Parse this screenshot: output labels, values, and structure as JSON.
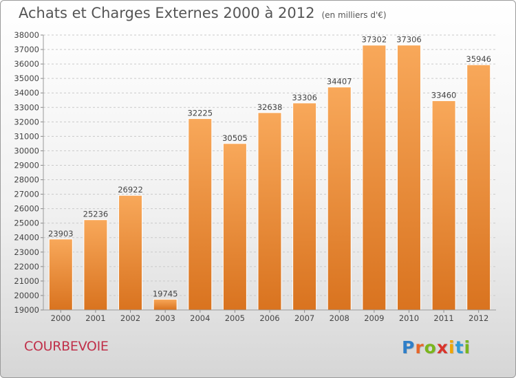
{
  "header": {
    "title": "Achats et Charges Externes 2000 à 2012",
    "unit": "(en milliers d'€)"
  },
  "footer": {
    "city": "COURBEVOIE",
    "logo": {
      "text": "Proxiti",
      "letters": [
        {
          "ch": "P",
          "color": "#2f7fc8"
        },
        {
          "ch": "r",
          "color": "#e6662a"
        },
        {
          "ch": "o",
          "color": "#7ab51d"
        },
        {
          "ch": "x",
          "color": "#d9342b"
        },
        {
          "ch": "i",
          "color": "#f0a500"
        },
        {
          "ch": "t",
          "color": "#2f9ad6"
        },
        {
          "ch": "i",
          "color": "#7ab51d"
        }
      ]
    }
  },
  "colors": {
    "bar_top": "#f8a85a",
    "bar_bottom": "#d9731f",
    "grid": "#c9c9c9",
    "text": "#444444"
  },
  "chart_data": {
    "type": "bar",
    "categories": [
      "2000",
      "2001",
      "2002",
      "2003",
      "2004",
      "2005",
      "2006",
      "2007",
      "2008",
      "2009",
      "2010",
      "2011",
      "2012"
    ],
    "values": [
      23903,
      25236,
      26922,
      19745,
      32225,
      30505,
      32638,
      33306,
      34407,
      37302,
      37306,
      33460,
      35946
    ],
    "title": "Achats et Charges Externes 2000 à 2012",
    "unit": "(en milliers d'€)",
    "ylim": [
      19000,
      38000
    ],
    "yticks": [
      19000,
      20000,
      21000,
      22000,
      23000,
      24000,
      25000,
      26000,
      27000,
      28000,
      29000,
      30000,
      31000,
      32000,
      33000,
      34000,
      35000,
      36000,
      37000,
      38000
    ],
    "grid": "dashed horizontal",
    "data_labels": true
  }
}
